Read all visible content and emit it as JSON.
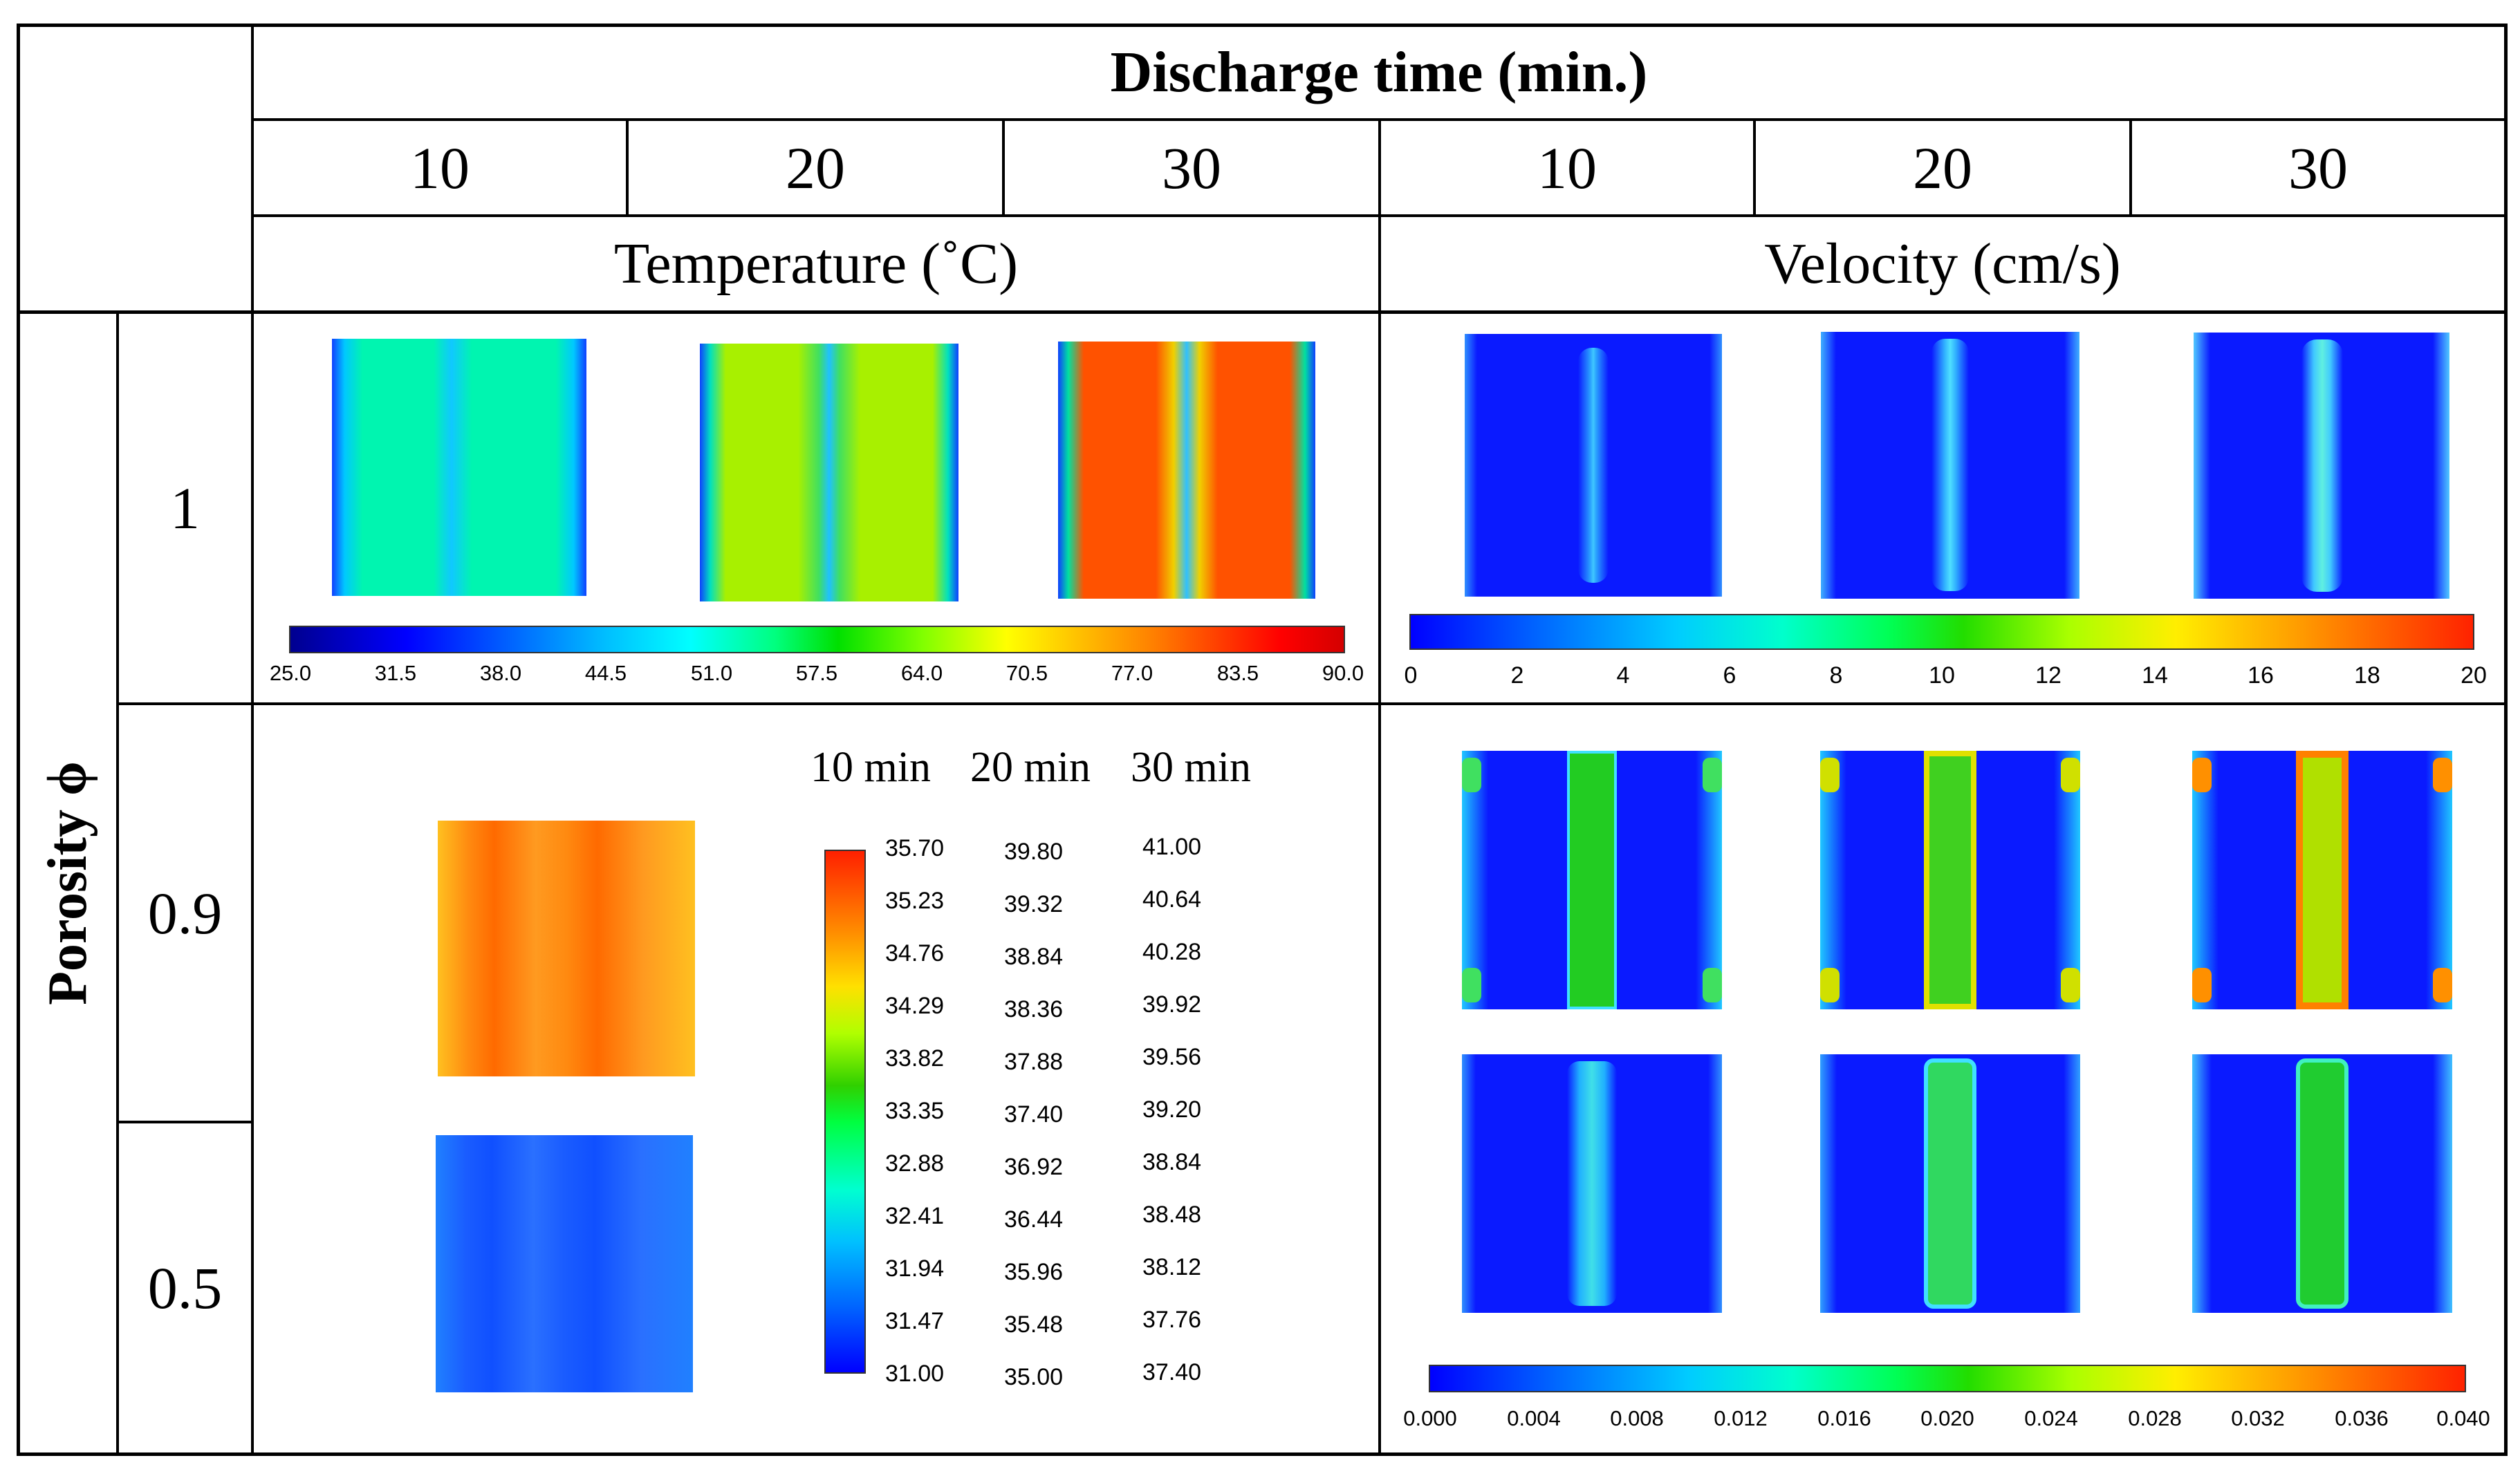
{
  "header": {
    "title": "Discharge time (min.)",
    "times_temperature": [
      "10",
      "20",
      "30"
    ],
    "times_velocity": [
      "10",
      "20",
      "30"
    ],
    "temperature_label": "Temperature (˚C)",
    "velocity_label": "Velocity (cm/s)"
  },
  "rows": {
    "axis_label": "Porosity ϕ",
    "porosity_values": [
      "1",
      "0.9",
      "0.5"
    ]
  },
  "temp_colorbar_ticks": [
    "25.0",
    "31.5",
    "38.0",
    "44.5",
    "51.0",
    "57.5",
    "64.0",
    "70.5",
    "77.0",
    "83.5",
    "90.0"
  ],
  "vel_colorbar_ticks_top": [
    "0",
    "2",
    "4",
    "6",
    "8",
    "10",
    "12",
    "14",
    "16",
    "18",
    "20"
  ],
  "vel_colorbar_ticks_bottom": [
    "0.000",
    "0.004",
    "0.008",
    "0.012",
    "0.016",
    "0.020",
    "0.024",
    "0.028",
    "0.032",
    "0.036",
    "0.040"
  ],
  "porous_legend": {
    "headers": [
      "10 min",
      "20 min",
      "30 min"
    ],
    "col_10": [
      "35.70",
      "35.23",
      "34.76",
      "34.29",
      "33.82",
      "33.35",
      "32.88",
      "32.41",
      "31.94",
      "31.47",
      "31.00"
    ],
    "col_20": [
      "39.80",
      "39.32",
      "38.84",
      "38.36",
      "37.88",
      "37.40",
      "36.92",
      "36.44",
      "35.96",
      "35.48",
      "35.00"
    ],
    "col_30": [
      "41.00",
      "40.64",
      "40.28",
      "39.92",
      "39.56",
      "39.20",
      "38.84",
      "38.48",
      "38.12",
      "37.76",
      "37.40"
    ]
  },
  "colors": {
    "temp_10": "#00f5b0",
    "temp_20": "#a8f000",
    "temp_30": "#ff5200",
    "vel_background": "#0a1aff",
    "porous_09": "#ff8a10",
    "porous_05": "#1a5cff"
  }
}
